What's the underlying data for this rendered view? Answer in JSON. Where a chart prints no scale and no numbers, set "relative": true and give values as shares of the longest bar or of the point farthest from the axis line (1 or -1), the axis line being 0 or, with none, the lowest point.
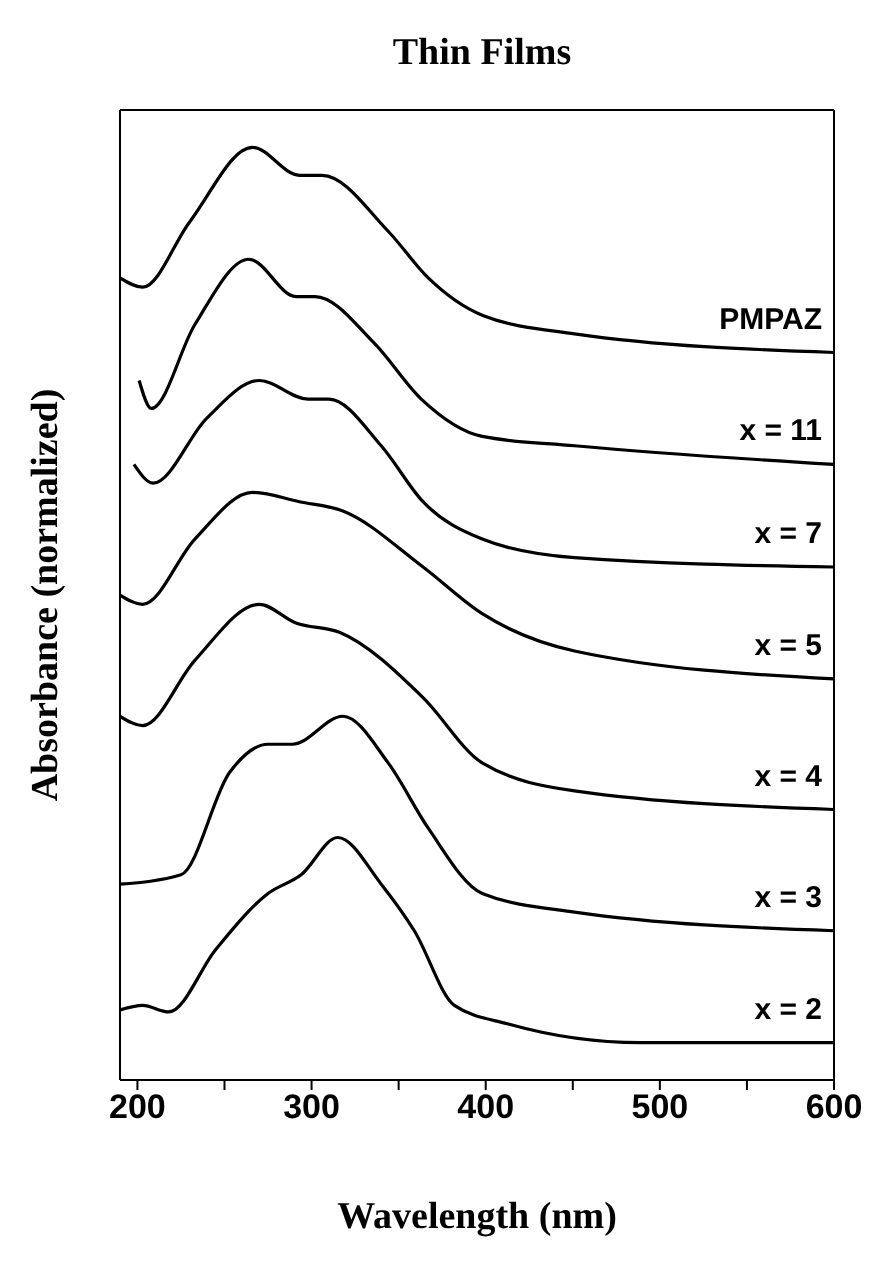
{
  "chart_data": {
    "type": "line",
    "title": "Thin Films",
    "xlabel": "Wavelength (nm)",
    "ylabel": "Absorbance (normalized)",
    "relative": true,
    "xlim": [
      190,
      600
    ],
    "xticks": [
      200,
      {
        "value": 250,
        "label": null
      },
      300,
      {
        "value": 350,
        "label": null
      },
      400,
      {
        "value": 450,
        "label": null
      },
      500,
      {
        "value": 550,
        "label": null
      },
      600
    ],
    "marker": "none",
    "line_style": "solid",
    "series": [
      {
        "name": "PMPAZ",
        "color": "#000000",
        "x": [
          190,
          203,
          230,
          266,
          293,
          306,
          344,
          367,
          398,
          451,
          600
        ],
        "values": [
          0.86,
          0.85,
          0.92,
          1.0,
          0.97,
          0.97,
          0.91,
          0.86,
          0.82,
          0.8,
          0.78
        ]
      },
      {
        "name": "x = 11",
        "color": "#000000",
        "x": [
          201,
          208,
          233,
          264,
          291,
          302,
          336,
          363,
          398,
          451,
          600
        ],
        "values": [
          0.75,
          0.72,
          0.81,
          0.88,
          0.84,
          0.84,
          0.79,
          0.73,
          0.69,
          0.68,
          0.66
        ]
      },
      {
        "name": "x = 7",
        "color": "#000000",
        "x": [
          198,
          209,
          240,
          270,
          298,
          310,
          340,
          364,
          398,
          451,
          600
        ],
        "values": [
          0.66,
          0.64,
          0.71,
          0.75,
          0.73,
          0.73,
          0.68,
          0.62,
          0.58,
          0.56,
          0.55
        ]
      },
      {
        "name": "x = 5",
        "color": "#000000",
        "x": [
          190,
          203,
          233,
          266,
          293,
          318,
          364,
          398,
          451,
          600
        ],
        "values": [
          0.52,
          0.51,
          0.58,
          0.63,
          0.62,
          0.61,
          0.55,
          0.5,
          0.46,
          0.43
        ]
      },
      {
        "name": "x = 4",
        "color": "#000000",
        "x": [
          190,
          203,
          233,
          270,
          291,
          316,
          364,
          398,
          451,
          600
        ],
        "values": [
          0.39,
          0.38,
          0.45,
          0.51,
          0.49,
          0.48,
          0.41,
          0.34,
          0.31,
          0.29
        ]
      },
      {
        "name": "x = 3",
        "color": "#000000",
        "x": [
          190,
          225,
          253,
          275,
          289,
          318,
          344,
          367,
          398,
          451,
          600
        ],
        "values": [
          0.21,
          0.22,
          0.33,
          0.36,
          0.36,
          0.39,
          0.34,
          0.27,
          0.2,
          0.18,
          0.16
        ]
      },
      {
        "name": "x = 2",
        "color": "#000000",
        "x": [
          190,
          203,
          218,
          245,
          275,
          294,
          315,
          340,
          359,
          382,
          413,
          489,
          600
        ],
        "values": [
          0.075,
          0.08,
          0.073,
          0.14,
          0.2,
          0.22,
          0.26,
          0.21,
          0.16,
          0.08,
          0.06,
          0.04,
          0.04
        ]
      }
    ]
  }
}
